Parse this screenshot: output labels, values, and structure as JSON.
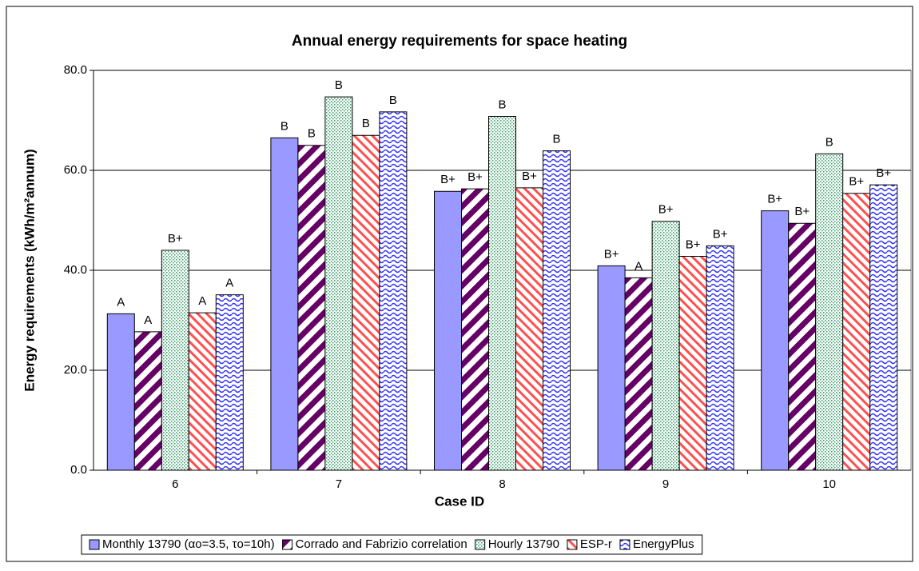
{
  "chart_data": {
    "type": "bar",
    "title": "Annual energy requirements for space heating",
    "xlabel": "Case ID",
    "ylabel": "Energy requirements (kWh/m²annum)",
    "categories": [
      "6",
      "7",
      "8",
      "9",
      "10"
    ],
    "series": [
      {
        "name": "Monthly 13790 (αo=3.5, τo=10h)",
        "color": "#9999ff",
        "pattern": "solid",
        "values": [
          31.3,
          66.5,
          55.8,
          40.9,
          51.9
        ],
        "labels": [
          "A",
          "B",
          "B+",
          "B+",
          "B+"
        ]
      },
      {
        "name": "Corrado and Fabrizio correlation",
        "color": "#660066",
        "pattern": "diag-down",
        "values": [
          27.7,
          65.0,
          56.3,
          38.5,
          49.4
        ],
        "labels": [
          "A",
          "B",
          "B+",
          "A",
          "B+"
        ]
      },
      {
        "name": "Hourly 13790",
        "color": "#339966",
        "pattern": "dots",
        "values": [
          44.0,
          74.7,
          70.8,
          49.8,
          63.3
        ],
        "labels": [
          "B+",
          "B",
          "B",
          "B+",
          "B"
        ]
      },
      {
        "name": "ESP-r",
        "color": "#ff5050",
        "pattern": "diag-up",
        "values": [
          31.5,
          67.0,
          56.5,
          42.8,
          55.4
        ],
        "labels": [
          "A",
          "B",
          "B+",
          "B+",
          "B+"
        ]
      },
      {
        "name": "EnergyPlus",
        "color": "#3333ff",
        "pattern": "wave",
        "values": [
          35.1,
          71.7,
          63.9,
          44.9,
          57.1
        ],
        "labels": [
          "A",
          "B",
          "B",
          "B+",
          "B+"
        ]
      }
    ],
    "ylim": [
      0,
      80
    ],
    "yticks": [
      {
        "value": 0,
        "label": "0.0"
      },
      {
        "value": 20,
        "label": "20.0"
      },
      {
        "value": 40,
        "label": "40.0"
      },
      {
        "value": 60,
        "label": "60.0"
      },
      {
        "value": 80,
        "label": "80.0"
      }
    ],
    "grid": true,
    "legend": "bottom"
  }
}
